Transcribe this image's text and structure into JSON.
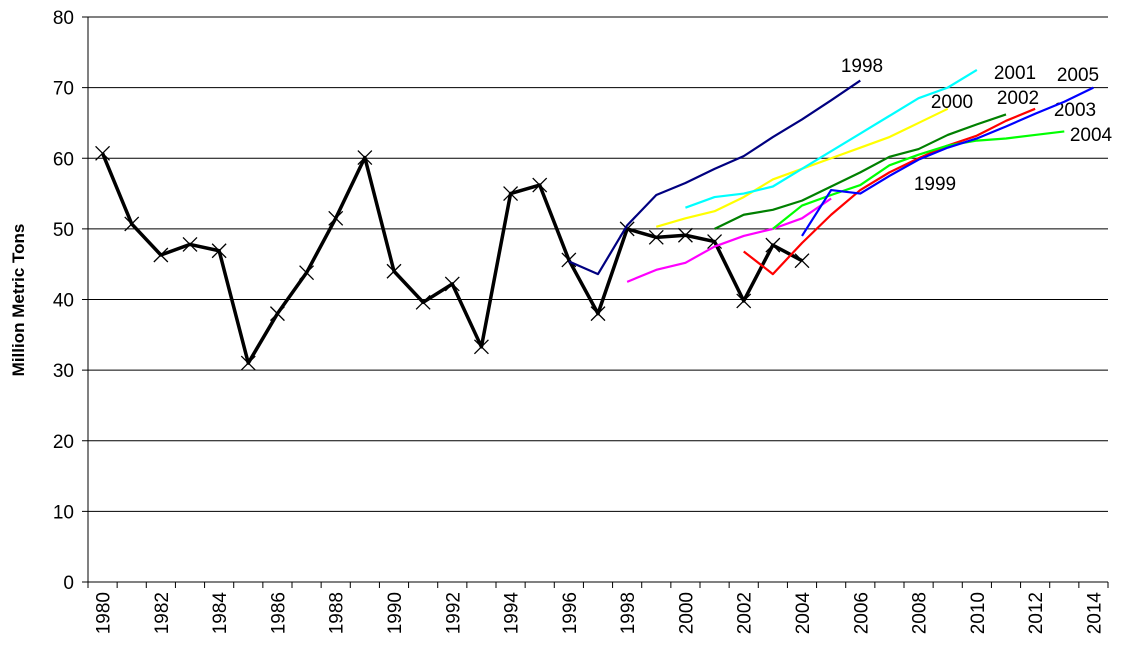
{
  "chart_data": {
    "type": "line",
    "y_label": "Million Metric Tons",
    "categories": [
      "1980",
      null,
      "1982",
      null,
      "1984",
      null,
      "1986",
      null,
      "1988",
      null,
      "1990",
      null,
      "1992",
      null,
      "1994",
      null,
      "1996",
      null,
      "1998",
      null,
      "2000",
      null,
      "2002",
      null,
      "2004",
      null,
      "2006",
      null,
      "2008",
      null,
      "2010",
      null,
      "2012",
      null,
      "2014"
    ],
    "ylim": [
      0,
      80
    ],
    "yticks": [
      0,
      10,
      20,
      30,
      40,
      50,
      60,
      70,
      80
    ],
    "grid": true,
    "series": [
      {
        "name": null,
        "color": "#000000",
        "marker": "x",
        "values": [
          60.7,
          50.7,
          46.3,
          47.8,
          46.9,
          31.0,
          38.0,
          43.8,
          51.5,
          60.1,
          44.0,
          39.6,
          42.2,
          33.3,
          55.0,
          56.2,
          45.6,
          38.0,
          50.0,
          48.8,
          49.1,
          48.2,
          39.8,
          47.7,
          45.5,
          null,
          null,
          null,
          null,
          null,
          null,
          null,
          null,
          null,
          null
        ]
      },
      {
        "name": "1998",
        "color": "#000080",
        "values": [
          null,
          null,
          null,
          null,
          null,
          null,
          null,
          null,
          null,
          null,
          null,
          null,
          null,
          null,
          null,
          null,
          45.4,
          43.6,
          50.5,
          54.8,
          56.5,
          58.5,
          60.3,
          63.0,
          65.5,
          68.2,
          71.0,
          null,
          null,
          null,
          null,
          null,
          null,
          null,
          null
        ]
      },
      {
        "name": "1999",
        "color": "#ff00ff",
        "values": [
          null,
          null,
          null,
          null,
          null,
          null,
          null,
          null,
          null,
          null,
          null,
          null,
          null,
          null,
          null,
          null,
          null,
          null,
          42.5,
          44.2,
          45.2,
          47.5,
          49.0,
          50.0,
          51.5,
          54.3,
          null,
          null,
          null,
          null,
          null,
          null,
          null,
          null,
          null
        ]
      },
      {
        "name": "2000",
        "color": "#ffff00",
        "values": [
          null,
          null,
          null,
          null,
          null,
          null,
          null,
          null,
          null,
          null,
          null,
          null,
          null,
          null,
          null,
          null,
          null,
          null,
          null,
          50.3,
          51.5,
          52.5,
          54.5,
          57.0,
          58.5,
          60.0,
          61.5,
          63.0,
          65.0,
          67.0,
          null,
          null,
          null,
          null,
          null
        ]
      },
      {
        "name": "2001",
        "color": "#00ffff",
        "values": [
          null,
          null,
          null,
          null,
          null,
          null,
          null,
          null,
          null,
          null,
          null,
          null,
          null,
          null,
          null,
          null,
          null,
          null,
          null,
          null,
          53.0,
          54.5,
          55.0,
          56.0,
          58.5,
          61.0,
          63.5,
          66.0,
          68.5,
          70.0,
          72.5,
          null,
          null,
          null,
          null
        ]
      },
      {
        "name": "2002",
        "color": "#008000",
        "values": [
          null,
          null,
          null,
          null,
          null,
          null,
          null,
          null,
          null,
          null,
          null,
          null,
          null,
          null,
          null,
          null,
          null,
          null,
          null,
          null,
          null,
          50.0,
          52.0,
          52.7,
          54.0,
          56.0,
          58.0,
          60.2,
          61.3,
          63.3,
          64.8,
          66.2,
          null,
          null,
          null
        ]
      },
      {
        "name": "2003",
        "color": "#ff0000",
        "values": [
          null,
          null,
          null,
          null,
          null,
          null,
          null,
          null,
          null,
          null,
          null,
          null,
          null,
          null,
          null,
          null,
          null,
          null,
          null,
          null,
          null,
          null,
          46.8,
          43.6,
          48.0,
          52.0,
          55.5,
          58.0,
          60.0,
          61.8,
          63.2,
          65.3,
          67.0,
          null,
          null
        ]
      },
      {
        "name": "2004",
        "color": "#00ff00",
        "values": [
          null,
          null,
          null,
          null,
          null,
          null,
          null,
          null,
          null,
          null,
          null,
          null,
          null,
          null,
          null,
          null,
          null,
          null,
          null,
          null,
          null,
          null,
          null,
          50.0,
          53.3,
          54.8,
          56.2,
          59.0,
          60.5,
          61.8,
          62.5,
          62.8,
          63.3,
          63.8,
          null
        ]
      },
      {
        "name": "2005",
        "color": "#0000ff",
        "values": [
          null,
          null,
          null,
          null,
          null,
          null,
          null,
          null,
          null,
          null,
          null,
          null,
          null,
          null,
          null,
          null,
          null,
          null,
          null,
          null,
          null,
          null,
          null,
          null,
          49.0,
          55.5,
          55.0,
          57.5,
          59.8,
          61.5,
          62.8,
          64.5,
          66.3,
          68.0,
          70.0
        ]
      }
    ]
  }
}
